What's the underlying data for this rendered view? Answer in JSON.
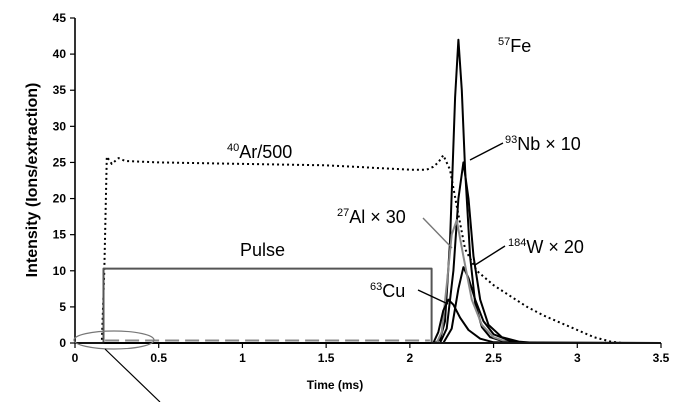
{
  "chart_data": {
    "type": "line",
    "xlabel": "Time (ms)",
    "ylabel": "Intensity  (Ions/extraction)",
    "xlim": [
      0,
      3.5
    ],
    "ylim": [
      0,
      45
    ],
    "xticks": [
      "0",
      "0.5",
      "1",
      "1.5",
      "2",
      "2.5",
      "3",
      "3.5"
    ],
    "yticks": [
      "0",
      "5",
      "10",
      "15",
      "20",
      "25",
      "30",
      "35",
      "40",
      "45"
    ],
    "grid": false,
    "series": [
      {
        "name": "57Fe",
        "color": "#000000",
        "style": "solid",
        "x": [
          0,
          2.15,
          2.18,
          2.21,
          2.24,
          2.27,
          2.29,
          2.31,
          2.33,
          2.36,
          2.39,
          2.43,
          2.48,
          2.55,
          2.65,
          2.75,
          3.5
        ],
        "y": [
          0,
          0,
          0.5,
          3,
          14,
          34,
          42,
          35,
          24,
          12,
          5.5,
          2.2,
          0.8,
          0.3,
          0.1,
          0,
          0
        ]
      },
      {
        "name": "93Nb × 10",
        "color": "#000000",
        "style": "solid",
        "x": [
          0,
          2.18,
          2.22,
          2.26,
          2.29,
          2.32,
          2.35,
          2.38,
          2.42,
          2.47,
          2.55,
          2.65,
          2.75,
          3.5
        ],
        "y": [
          0,
          0,
          2,
          10,
          20,
          25,
          20,
          12,
          6,
          2.5,
          0.8,
          0.2,
          0,
          0
        ]
      },
      {
        "name": "184W × 20",
        "color": "#000000",
        "style": "solid",
        "x": [
          0,
          2.2,
          2.25,
          2.29,
          2.32,
          2.35,
          2.39,
          2.44,
          2.5,
          2.6,
          2.7,
          3.5
        ],
        "y": [
          0,
          0,
          2,
          7.5,
          10.5,
          9,
          6,
          3,
          1.2,
          0.3,
          0,
          0
        ]
      },
      {
        "name": "27Al × 30",
        "color": "#8a8a8a",
        "style": "solid",
        "x": [
          0,
          2.16,
          2.19,
          2.22,
          2.25,
          2.28,
          2.32,
          2.37,
          2.43,
          2.5,
          2.6,
          3.5
        ],
        "y": [
          0,
          0,
          1.5,
          8,
          15,
          17,
          12,
          6,
          2.5,
          0.8,
          0,
          0
        ]
      },
      {
        "name": "63Cu",
        "color": "#000000",
        "style": "solid",
        "x": [
          0,
          2.14,
          2.17,
          2.2,
          2.23,
          2.26,
          2.3,
          2.35,
          2.42,
          2.5,
          3.5
        ],
        "y": [
          0,
          0,
          1.5,
          4.5,
          6,
          5.3,
          3.5,
          1.8,
          0.6,
          0.1,
          0
        ]
      },
      {
        "name": "40Ar/500",
        "color": "#000000",
        "style": "dotted",
        "x": [
          0,
          0.1,
          0.16,
          0.175,
          0.19,
          0.22,
          0.26,
          0.3,
          0.5,
          1.0,
          1.5,
          2.0,
          2.1,
          2.14,
          2.17,
          2.2,
          2.24,
          2.28,
          2.33,
          2.4,
          2.5,
          2.6,
          2.7,
          2.8,
          2.9,
          3.0,
          3.1,
          3.2,
          3.27,
          3.5
        ],
        "y": [
          0,
          0,
          0,
          10,
          25.8,
          24.8,
          25.6,
          25.2,
          25,
          24.8,
          24.6,
          24,
          24,
          24.4,
          25,
          26,
          24,
          19,
          13,
          10,
          8,
          6.5,
          5,
          3.8,
          2.8,
          1.8,
          0.8,
          0.2,
          0,
          0
        ]
      },
      {
        "name": "Pulse",
        "color": "#555555",
        "style": "solid",
        "x": [
          0,
          0.17,
          0.17,
          2.13,
          2.13,
          3.5
        ],
        "y": [
          0,
          0,
          10.3,
          10.3,
          0,
          0
        ]
      },
      {
        "name": "dash-baseline",
        "color": "#8a8a8a",
        "style": "dashed",
        "x": [
          0.18,
          2.12
        ],
        "y": [
          0.35,
          0.35
        ]
      }
    ],
    "annotations": [
      {
        "key": "fe",
        "sup": "57",
        "text": "Fe",
        "color": "#000000"
      },
      {
        "key": "nb",
        "sup": "93",
        "text": "Nb × 10",
        "color": "#000000"
      },
      {
        "key": "al",
        "sup": "27",
        "text": "Al × 30",
        "color": "#777777"
      },
      {
        "key": "w",
        "sup": "184",
        "text": "W × 20",
        "color": "#000000"
      },
      {
        "key": "cu",
        "sup": "63",
        "text": "Cu",
        "color": "#000000"
      },
      {
        "key": "ar",
        "sup": "40",
        "text": "Ar/500",
        "color": "#000000"
      },
      {
        "key": "pulse",
        "sup": "",
        "text": "Pulse",
        "color": "#777777"
      }
    ]
  }
}
